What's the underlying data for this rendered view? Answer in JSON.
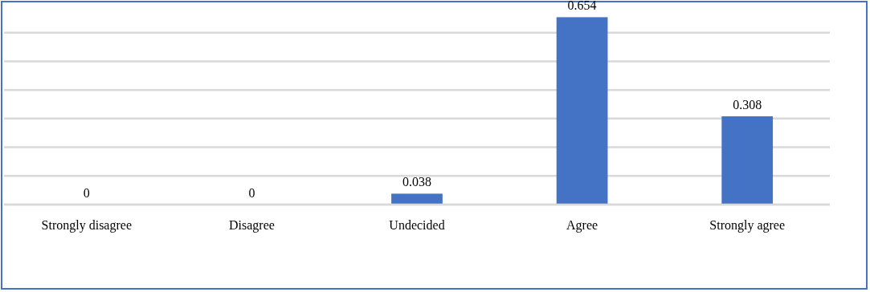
{
  "chart_data": {
    "type": "bar",
    "categories": [
      "Strongly disagree",
      "Disagree",
      "Undecided",
      "Agree",
      "Strongly agree"
    ],
    "values": [
      0,
      0,
      0.038,
      0.654,
      0.308
    ],
    "color": "#4472c4",
    "data_labels": true,
    "grid": "y",
    "tick_labels": "x",
    "ylim": [
      0,
      0.7
    ],
    "yticks": [
      {
        "value": 0,
        "label": null
      },
      {
        "value": 0.1,
        "label": null
      },
      {
        "value": 0.2,
        "label": null
      },
      {
        "value": 0.3,
        "label": null
      },
      {
        "value": 0.4,
        "label": null
      },
      {
        "value": 0.5,
        "label": null
      },
      {
        "value": 0.6,
        "label": null
      }
    ]
  }
}
